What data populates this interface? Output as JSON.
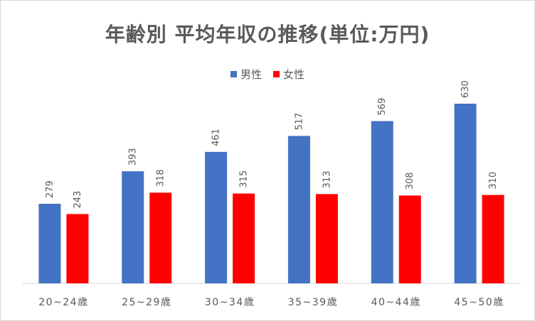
{
  "chart_data": {
    "type": "bar",
    "title": "年齢別 平均年収の推移(単位:万円)",
    "categories": [
      "20~24歳",
      "25~29歳",
      "30~34歳",
      "35~39歳",
      "40~44歳",
      "45~50歳"
    ],
    "series": [
      {
        "name": "男性",
        "color": "#4472C4",
        "values": [
          279,
          393,
          461,
          517,
          569,
          630
        ]
      },
      {
        "name": "女性",
        "color": "#FF0000",
        "values": [
          243,
          318,
          315,
          313,
          308,
          310
        ]
      }
    ],
    "ylim": [
      0,
      700
    ],
    "grid": false,
    "legend_position": "top"
  }
}
